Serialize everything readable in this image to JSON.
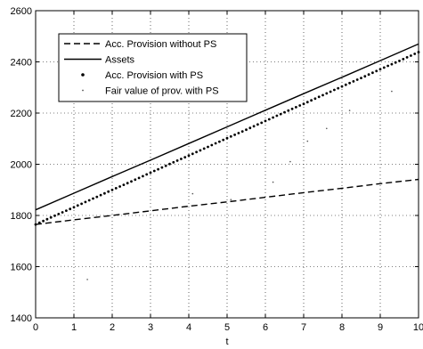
{
  "chart_data": {
    "type": "line",
    "title": "",
    "xlabel": "t",
    "ylabel": "",
    "xlim": [
      0,
      10
    ],
    "ylim": [
      1400,
      2600
    ],
    "grid": true,
    "legend_position": "top-left",
    "x_ticks": [
      0,
      1,
      2,
      3,
      4,
      5,
      6,
      7,
      8,
      9,
      10
    ],
    "y_ticks": [
      1400,
      1600,
      1800,
      2000,
      2200,
      2400,
      2600
    ],
    "series": [
      {
        "name": "Acc. Provision without PS",
        "style": "dashed",
        "color": "#000000",
        "x": [
          0,
          1,
          2,
          3,
          4,
          5,
          6,
          7,
          8,
          9,
          10
        ],
        "y": [
          1765,
          1783,
          1800,
          1818,
          1836,
          1853,
          1871,
          1889,
          1906,
          1924,
          1941
        ]
      },
      {
        "name": "Assets",
        "style": "solid",
        "color": "#000000",
        "x": [
          0,
          1,
          2,
          3,
          4,
          5,
          6,
          7,
          8,
          9,
          10
        ],
        "y": [
          1822,
          1887,
          1952,
          2016,
          2081,
          2146,
          2211,
          2276,
          2340,
          2405,
          2470
        ]
      },
      {
        "name": "Acc. Provision with PS",
        "style": "dots",
        "color": "#000000",
        "x": [
          0,
          0.5,
          1,
          1.5,
          2,
          2.5,
          3,
          3.5,
          4,
          4.5,
          5,
          5.5,
          6,
          6.5,
          7,
          7.5,
          8,
          8.5,
          9,
          9.5,
          10
        ],
        "y": [
          1765,
          1799,
          1832,
          1866,
          1900,
          1933,
          1967,
          2001,
          2034,
          2068,
          2102,
          2135,
          2169,
          2203,
          2236,
          2270,
          2304,
          2337,
          2371,
          2404,
          2438
        ]
      },
      {
        "name": "Fair value of prov. with PS",
        "style": "scatter-faint",
        "color": "#000000",
        "x": [
          1.35,
          4.1,
          5.1,
          6.2,
          6.65,
          7.1,
          7.6,
          8.2,
          9.3
        ],
        "y": [
          1550,
          1885,
          1862,
          1930,
          2010,
          2090,
          2140,
          2210,
          2285
        ]
      }
    ]
  }
}
